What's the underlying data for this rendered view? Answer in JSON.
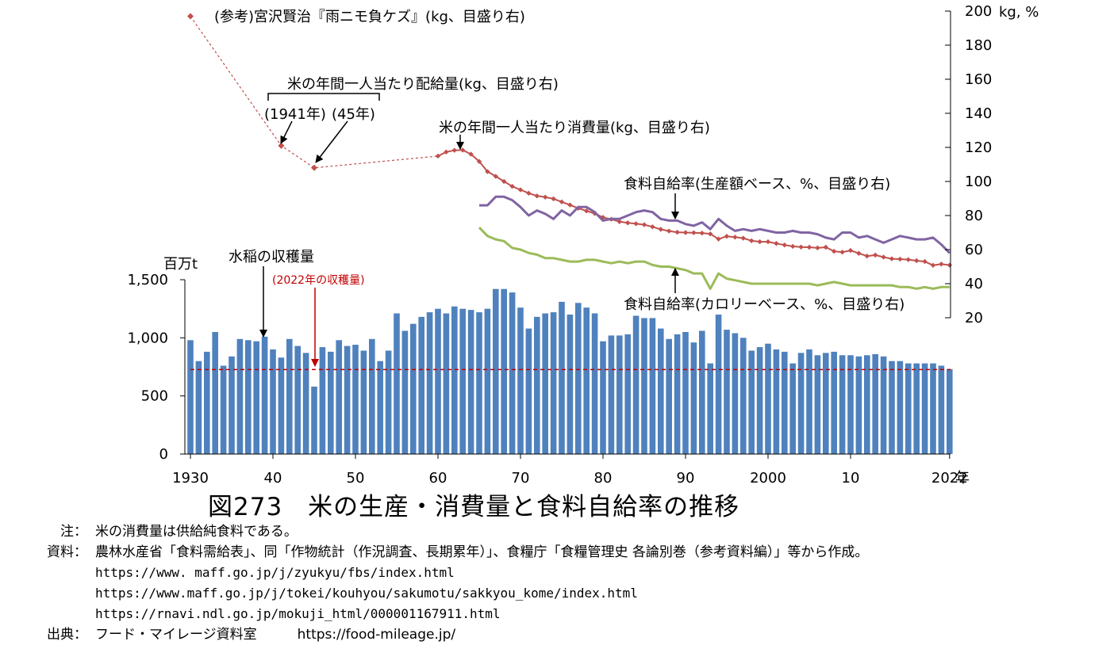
{
  "figure_title": "図273　米の生産・消費量と食料自給率の推移",
  "notes": [
    {
      "label": "注：",
      "text": "米の消費量は供給純食料である。"
    },
    {
      "label": "資料：",
      "text": "農林水産省「食料需給表」、同「作物統計（作況調査、長期累年）」、食糧庁「食糧管理史 各論別巻（参考資料編）」等から作成。"
    },
    {
      "label": "",
      "text": "https://www. maff.go.jp/j/zyukyu/fbs/index.html",
      "mono": true
    },
    {
      "label": "",
      "text": "https://www.maff.go.jp/j/tokei/kouhyou/sakumotu/sakkyou_kome/index.html",
      "mono": true
    },
    {
      "label": "",
      "text": "https://rnavi.ndl.go.jp/mokuji_html/000001167911.html",
      "mono": true
    },
    {
      "label": "出典：",
      "text": "フード・マイレージ資料室　　　https://food-mileage.jp/",
      "mono_tail": true
    }
  ],
  "colors": {
    "bar": "#4f81bd",
    "rice_line": "#c0504d",
    "production_value_line": "#8064a2",
    "calorie_line": "#9bbb59",
    "reference_line": "#c00000",
    "arrow": "#000000"
  },
  "chart_data": {
    "type": "bar+line",
    "left_axis": {
      "unit": "百万t",
      "min": 0,
      "max": 1500,
      "ticks": [
        "0",
        "500",
        "1,000",
        "1,500"
      ],
      "tick_values": [
        0,
        500,
        1000,
        1500
      ]
    },
    "right_axis": {
      "unit": "kg, %",
      "min": 20,
      "max": 200,
      "ticks": [
        20,
        40,
        60,
        80,
        100,
        120,
        140,
        160,
        180,
        200
      ]
    },
    "x_axis": {
      "min": 1930,
      "max": 2022,
      "tick_labels": [
        "1930",
        "40",
        "50",
        "60",
        "70",
        "80",
        "90",
        "2000",
        "10",
        "2022"
      ],
      "tick_years": [
        1930,
        1940,
        1950,
        1960,
        1970,
        1980,
        1990,
        2000,
        2010,
        2022
      ],
      "unit_suffix": "年"
    },
    "bar_series": {
      "name": "水稲の収穫量",
      "years": [
        1930,
        1931,
        1932,
        1933,
        1934,
        1935,
        1936,
        1937,
        1938,
        1939,
        1940,
        1941,
        1942,
        1943,
        1944,
        1945,
        1946,
        1947,
        1948,
        1949,
        1950,
        1951,
        1952,
        1953,
        1954,
        1955,
        1956,
        1957,
        1958,
        1959,
        1960,
        1961,
        1962,
        1963,
        1964,
        1965,
        1966,
        1967,
        1968,
        1969,
        1970,
        1971,
        1972,
        1973,
        1974,
        1975,
        1976,
        1977,
        1978,
        1979,
        1980,
        1981,
        1982,
        1983,
        1984,
        1985,
        1986,
        1987,
        1988,
        1989,
        1990,
        1991,
        1992,
        1993,
        1994,
        1995,
        1996,
        1997,
        1998,
        1999,
        2000,
        2001,
        2002,
        2003,
        2004,
        2005,
        2006,
        2007,
        2008,
        2009,
        2010,
        2011,
        2012,
        2013,
        2014,
        2015,
        2016,
        2017,
        2018,
        2019,
        2020,
        2021,
        2022
      ],
      "values": [
        980,
        800,
        880,
        1050,
        760,
        840,
        990,
        980,
        970,
        1010,
        900,
        830,
        990,
        930,
        870,
        580,
        920,
        880,
        980,
        930,
        940,
        890,
        990,
        800,
        890,
        1210,
        1060,
        1120,
        1180,
        1220,
        1250,
        1210,
        1270,
        1250,
        1240,
        1220,
        1250,
        1420,
        1420,
        1390,
        1260,
        1080,
        1180,
        1210,
        1220,
        1310,
        1200,
        1300,
        1260,
        1210,
        970,
        1020,
        1020,
        1030,
        1190,
        1170,
        1170,
        1080,
        990,
        1030,
        1050,
        960,
        1060,
        780,
        1200,
        1070,
        1040,
        1000,
        890,
        920,
        950,
        900,
        880,
        780,
        870,
        900,
        850,
        870,
        880,
        850,
        850,
        840,
        850,
        860,
        840,
        800,
        800,
        780,
        780,
        780,
        780,
        760,
        730
      ]
    },
    "reference_level": {
      "name": "(2022年の収穫量)",
      "value": 727
    },
    "reference_points": {
      "name": "(参考)宮沢賢治『雨ニモ負ケズ』(kg、目盛り右)",
      "x": [
        1930
      ],
      "y": [
        197
      ]
    },
    "ration_points": {
      "name": "米の年間一人当たり配給量(kg、目盛り右)",
      "x": [
        1941,
        1945
      ],
      "y": [
        121,
        108
      ],
      "labels": [
        "(1941年)",
        "(45年)"
      ]
    },
    "line_series": [
      {
        "name": "米の年間一人当たり消費量(kg、目盛り右)",
        "axis": "right",
        "x": [
          1960,
          1961,
          1962,
          1963,
          1964,
          1965,
          1966,
          1967,
          1968,
          1969,
          1970,
          1971,
          1972,
          1973,
          1974,
          1975,
          1976,
          1977,
          1978,
          1979,
          1980,
          1981,
          1982,
          1983,
          1984,
          1985,
          1986,
          1987,
          1988,
          1989,
          1990,
          1991,
          1992,
          1993,
          1994,
          1995,
          1996,
          1997,
          1998,
          1999,
          2000,
          2001,
          2002,
          2003,
          2004,
          2005,
          2006,
          2007,
          2008,
          2009,
          2010,
          2011,
          2012,
          2013,
          2014,
          2015,
          2016,
          2017,
          2018,
          2019,
          2020,
          2021,
          2022
        ],
        "y": [
          114.9,
          117.3,
          118.3,
          118.4,
          116.0,
          111.7,
          105.8,
          103.0,
          100.0,
          97.1,
          95.1,
          93.1,
          91.5,
          90.8,
          89.8,
          88.0,
          86.2,
          84.3,
          82.7,
          81.2,
          78.9,
          77.8,
          76.4,
          75.7,
          75.2,
          74.6,
          73.4,
          71.9,
          70.9,
          70.2,
          70.0,
          69.9,
          69.7,
          69.2,
          66.2,
          67.8,
          67.3,
          66.7,
          65.2,
          64.6,
          64.6,
          63.6,
          62.7,
          61.9,
          61.5,
          61.4,
          61.0,
          61.4,
          59.0,
          58.5,
          59.5,
          57.8,
          56.2,
          56.8,
          55.6,
          54.6,
          54.4,
          54.1,
          53.5,
          53.0,
          50.8,
          51.5,
          50.9
        ]
      },
      {
        "name": "食料自給率(生産額ベース、%、目盛り右)",
        "axis": "right",
        "x": [
          1965,
          1966,
          1967,
          1968,
          1969,
          1970,
          1971,
          1972,
          1973,
          1974,
          1975,
          1976,
          1977,
          1978,
          1979,
          1980,
          1981,
          1982,
          1983,
          1984,
          1985,
          1986,
          1987,
          1988,
          1989,
          1990,
          1991,
          1992,
          1993,
          1994,
          1995,
          1996,
          1997,
          1998,
          1999,
          2000,
          2001,
          2002,
          2003,
          2004,
          2005,
          2006,
          2007,
          2008,
          2009,
          2010,
          2011,
          2012,
          2013,
          2014,
          2015,
          2016,
          2017,
          2018,
          2019,
          2020,
          2021,
          2022
        ],
        "y": [
          86,
          86,
          91,
          91,
          89,
          85,
          80,
          83,
          81,
          78,
          83,
          80,
          85,
          85,
          82,
          77,
          78,
          78,
          80,
          82,
          83,
          82,
          78,
          77,
          77,
          75,
          74,
          76,
          72,
          78,
          74,
          71,
          72,
          71,
          72,
          71,
          70,
          70,
          71,
          70,
          70,
          69,
          67,
          66,
          70,
          70,
          67,
          68,
          66,
          64,
          66,
          68,
          67,
          66,
          66,
          67,
          63,
          58
        ]
      },
      {
        "name": "食料自給率(カロリーベース、%、目盛り右)",
        "axis": "right",
        "x": [
          1965,
          1966,
          1967,
          1968,
          1969,
          1970,
          1971,
          1972,
          1973,
          1974,
          1975,
          1976,
          1977,
          1978,
          1979,
          1980,
          1981,
          1982,
          1983,
          1984,
          1985,
          1986,
          1987,
          1988,
          1989,
          1990,
          1991,
          1992,
          1993,
          1994,
          1995,
          1996,
          1997,
          1998,
          1999,
          2000,
          2001,
          2002,
          2003,
          2004,
          2005,
          2006,
          2007,
          2008,
          2009,
          2010,
          2011,
          2012,
          2013,
          2014,
          2015,
          2016,
          2017,
          2018,
          2019,
          2020,
          2021,
          2022
        ],
        "y": [
          73,
          68,
          66,
          65,
          61,
          60,
          58,
          57,
          55,
          55,
          54,
          53,
          53,
          54,
          54,
          53,
          52,
          53,
          52,
          53,
          53,
          51,
          50,
          50,
          49,
          48,
          46,
          46,
          37,
          46,
          43,
          42,
          41,
          40,
          40,
          40,
          40,
          40,
          40,
          40,
          40,
          39,
          40,
          41,
          40,
          39,
          39,
          39,
          39,
          39,
          39,
          38,
          38,
          37,
          38,
          37,
          38,
          38
        ]
      }
    ],
    "annotations": [
      "(参考)宮沢賢治『雨ニモ負ケズ』(kg、目盛り右)",
      "米の年間一人当たり配給量(kg、目盛り右)",
      "(1941年)",
      "(45年)",
      "米の年間一人当たり消費量(kg、目盛り右)",
      "食料自給率(生産額ベース、%、目盛り右)",
      "食料自給率(カロリーベース、%、目盛り右)",
      "水稲の収穫量",
      "(2022年の収穫量)"
    ]
  }
}
